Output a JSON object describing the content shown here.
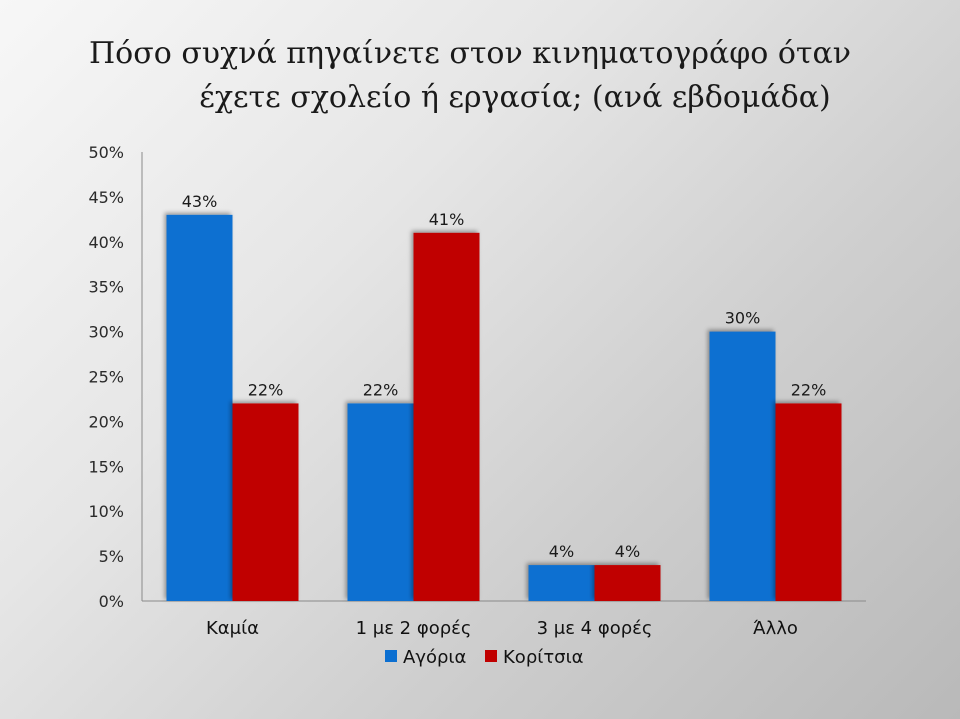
{
  "title_line1": "Πόσο συχνά πηγαίνετε στον κινηματογράφο όταν",
  "title_line2": "έχετε σχολείο ή εργασία; (ανά εβδομάδα)",
  "chart_data": {
    "type": "bar",
    "categories": [
      "Καμία",
      "1 με 2 φορές",
      "3 με 4 φορές",
      "Άλλο"
    ],
    "series": [
      {
        "name": "Αγόρια",
        "values": [
          43,
          22,
          4,
          30
        ],
        "color": "#0b6fd1"
      },
      {
        "name": "Κορίτσια",
        "values": [
          22,
          41,
          4,
          22
        ],
        "color": "#c00000"
      }
    ],
    "value_suffix": "%",
    "ylim": [
      0,
      50
    ],
    "yticks": [
      "0%",
      "5%",
      "10%",
      "15%",
      "20%",
      "25%",
      "30%",
      "35%",
      "40%",
      "45%",
      "50%"
    ],
    "grid": false,
    "legend_position": "bottom",
    "xlabel": "",
    "ylabel": ""
  }
}
